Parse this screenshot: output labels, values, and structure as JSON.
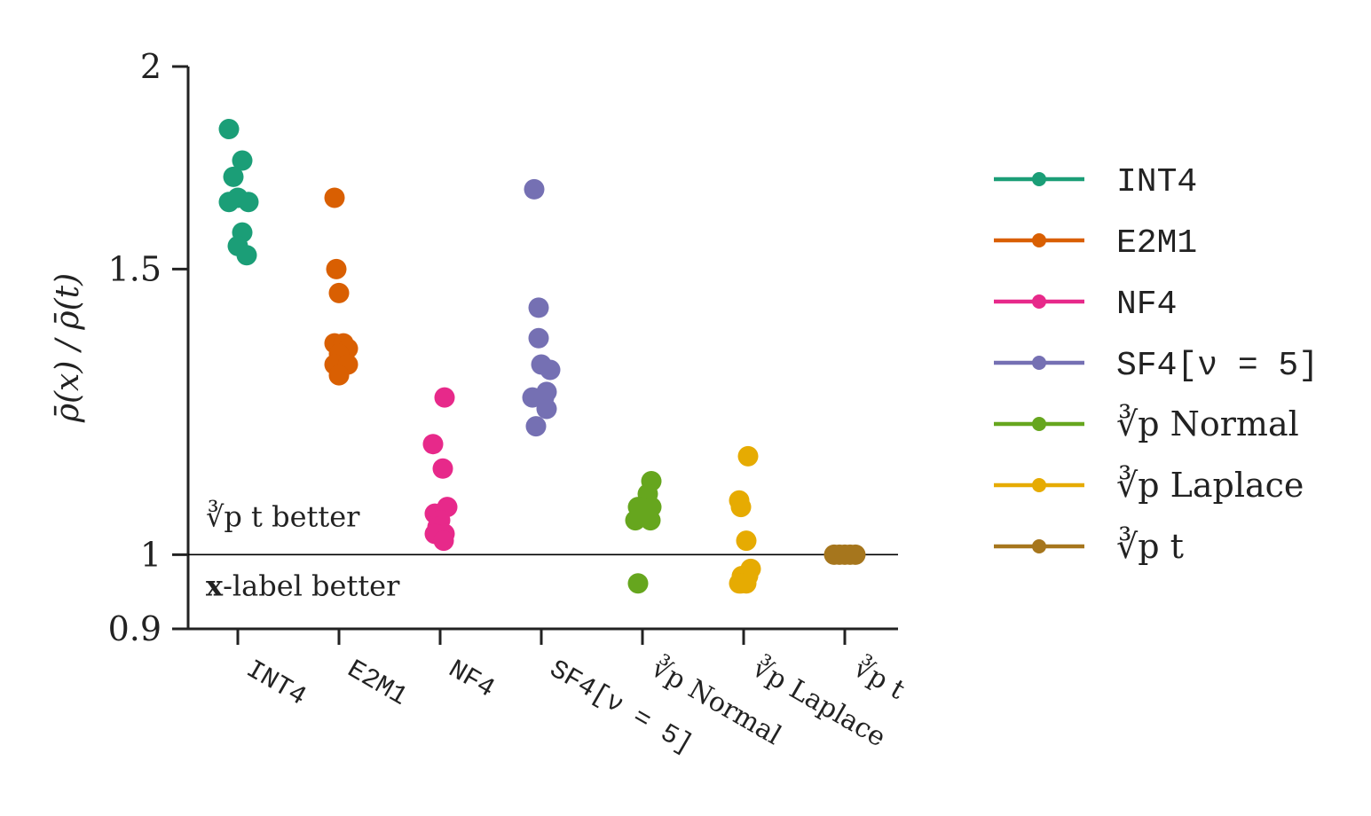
{
  "chart_data": {
    "type": "scatter",
    "title": "",
    "ylabel": "ρ̄(x) / ρ̄(t)",
    "yscale": "log",
    "ylim": [
      0.9,
      2.0
    ],
    "yticks": [
      {
        "value": 0.9,
        "label": "0.9"
      },
      {
        "value": 1.0,
        "label": "1"
      },
      {
        "value": 1.5,
        "label": "1.5"
      },
      {
        "value": 2.0,
        "label": "2"
      }
    ],
    "reference_line": 1.0,
    "annotations": {
      "above": "∛p t better",
      "below_bold": "x",
      "below": "-label better"
    },
    "categories": [
      "INT4",
      "E2M1",
      "NF4",
      "SF4[ν = 5]",
      "∛p Normal",
      "∛p Laplace",
      "∛p t"
    ],
    "series": [
      {
        "name": "INT4",
        "color": "#1b9e77",
        "mono": true,
        "points": [
          [
            -0.1,
            1.83
          ],
          [
            0.05,
            1.75
          ],
          [
            -0.05,
            1.71
          ],
          [
            -0.1,
            1.65
          ],
          [
            0.0,
            1.66
          ],
          [
            0.12,
            1.65
          ],
          [
            0.05,
            1.58
          ],
          [
            0.0,
            1.55
          ],
          [
            0.1,
            1.53
          ]
        ]
      },
      {
        "name": "E2M1",
        "color": "#d95f02",
        "mono": true,
        "points": [
          [
            -0.05,
            1.66
          ],
          [
            -0.03,
            1.5
          ],
          [
            0.0,
            1.45
          ],
          [
            -0.05,
            1.35
          ],
          [
            0.05,
            1.35
          ],
          [
            0.1,
            1.34
          ],
          [
            0.0,
            1.33
          ],
          [
            -0.05,
            1.31
          ],
          [
            0.1,
            1.31
          ],
          [
            0.0,
            1.29
          ]
        ]
      },
      {
        "name": "NF4",
        "color": "#e7298a",
        "mono": true,
        "points": [
          [
            0.05,
            1.25
          ],
          [
            -0.08,
            1.17
          ],
          [
            0.03,
            1.13
          ],
          [
            0.08,
            1.07
          ],
          [
            -0.06,
            1.06
          ],
          [
            0.0,
            1.05
          ],
          [
            -0.03,
            1.04
          ],
          [
            0.05,
            1.03
          ],
          [
            -0.06,
            1.03
          ],
          [
            0.04,
            1.02
          ]
        ]
      },
      {
        "name": "SF4[ν = 5]",
        "color": "#7570b3",
        "mono": true,
        "points": [
          [
            -0.08,
            1.68
          ],
          [
            -0.03,
            1.42
          ],
          [
            -0.03,
            1.36
          ],
          [
            0.0,
            1.31
          ],
          [
            0.1,
            1.3
          ],
          [
            0.06,
            1.26
          ],
          [
            -0.1,
            1.25
          ],
          [
            0.03,
            1.25
          ],
          [
            0.06,
            1.23
          ],
          [
            -0.06,
            1.2
          ]
        ]
      },
      {
        "name": "∛p Normal",
        "color": "#66a61e",
        "mono": false,
        "points": [
          [
            0.1,
            1.11
          ],
          [
            0.06,
            1.09
          ],
          [
            0.0,
            1.07
          ],
          [
            0.1,
            1.07
          ],
          [
            -0.05,
            1.07
          ],
          [
            0.03,
            1.06
          ],
          [
            0.09,
            1.05
          ],
          [
            -0.08,
            1.05
          ],
          [
            -0.05,
            0.96
          ]
        ]
      },
      {
        "name": "∛p Laplace",
        "color": "#e6ab02",
        "mono": false,
        "points": [
          [
            0.05,
            1.15
          ],
          [
            -0.05,
            1.08
          ],
          [
            -0.03,
            1.07
          ],
          [
            0.03,
            1.02
          ],
          [
            0.08,
            0.98
          ],
          [
            -0.02,
            0.97
          ],
          [
            0.05,
            0.97
          ],
          [
            -0.05,
            0.96
          ],
          [
            -0.03,
            0.96
          ],
          [
            0.03,
            0.96
          ]
        ]
      },
      {
        "name": "∛p t",
        "color": "#a6761d",
        "mono": false,
        "points": [
          [
            -0.12,
            1.0
          ],
          [
            -0.06,
            1.0
          ],
          [
            0.0,
            1.0
          ],
          [
            0.06,
            1.0
          ],
          [
            0.12,
            1.0
          ]
        ]
      }
    ],
    "legend": "right"
  }
}
